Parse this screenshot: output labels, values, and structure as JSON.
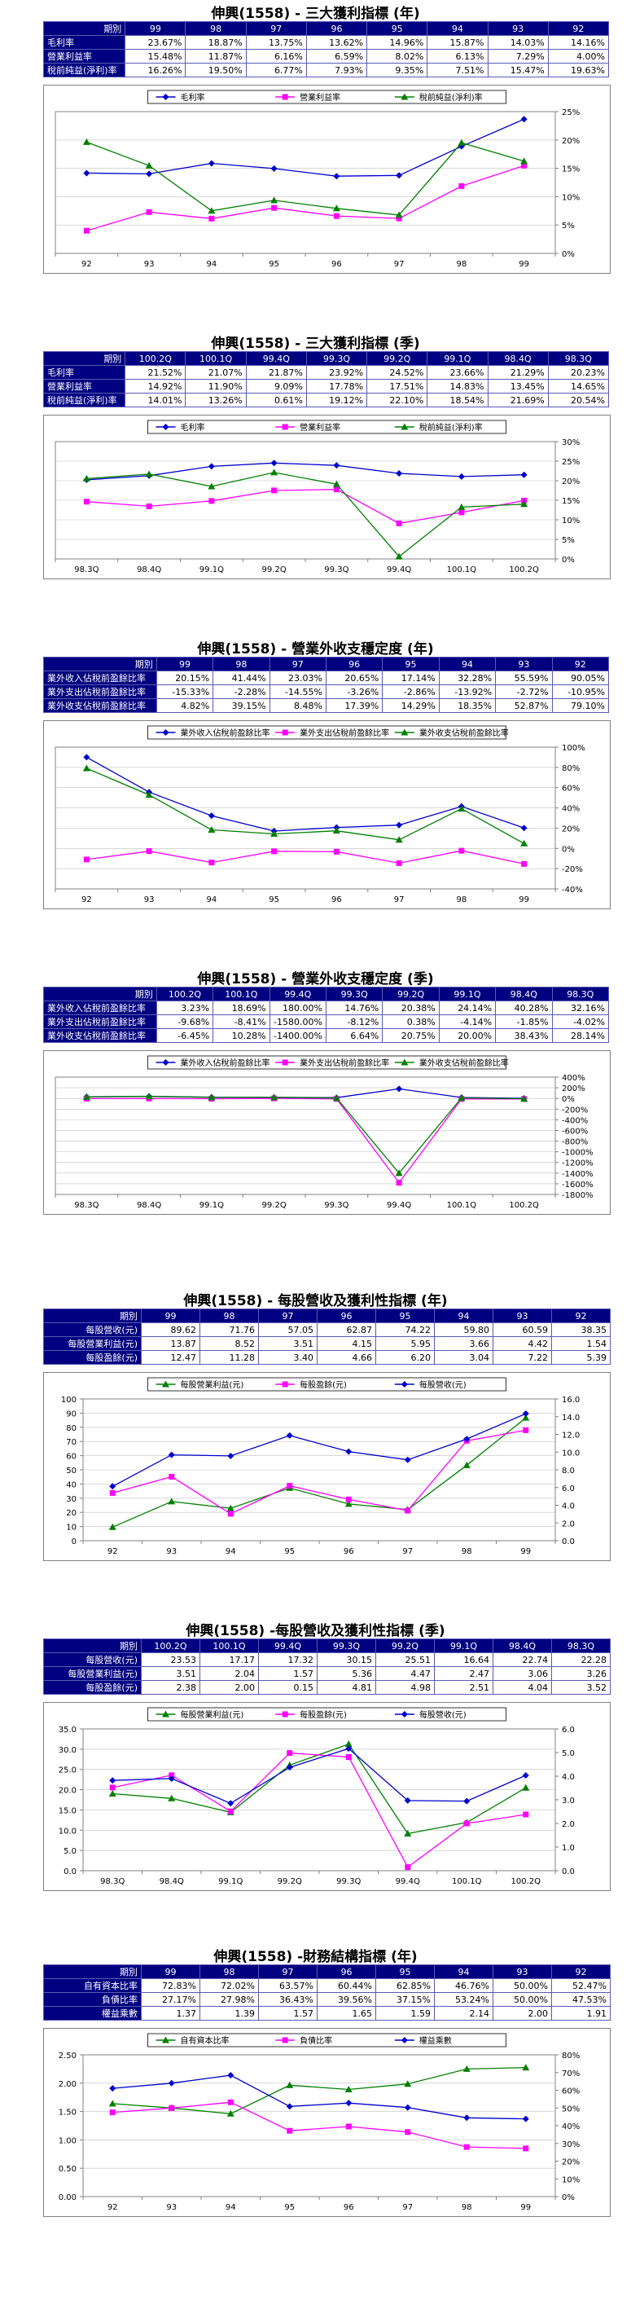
{
  "sections": [
    {
      "title": "伸興(1558) - 三大獲利指標 (年)",
      "label_align": "left",
      "columns": [
        "期別",
        "99",
        "98",
        "97",
        "96",
        "95",
        "94",
        "93",
        "92"
      ],
      "rows": [
        [
          "毛利率",
          "23.67%",
          "18.87%",
          "13.75%",
          "13.62%",
          "14.96%",
          "15.87%",
          "14.03%",
          "14.16%"
        ],
        [
          "營業利益率",
          "15.48%",
          "11.87%",
          "6.16%",
          "6.59%",
          "8.02%",
          "6.13%",
          "7.29%",
          "4.00%"
        ],
        [
          "稅前純益(淨利)率",
          "16.26%",
          "19.50%",
          "6.77%",
          "7.93%",
          "9.35%",
          "7.51%",
          "15.47%",
          "19.63%"
        ]
      ]
    },
    {
      "title": "伸興(1558) - 三大獲利指標 (季)",
      "label_align": "left",
      "columns": [
        "期別",
        "100.2Q",
        "100.1Q",
        "99.4Q",
        "99.3Q",
        "99.2Q",
        "99.1Q",
        "98.4Q",
        "98.3Q"
      ],
      "rows": [
        [
          "毛利率",
          "21.52%",
          "21.07%",
          "21.87%",
          "23.92%",
          "24.52%",
          "23.66%",
          "21.29%",
          "20.23%"
        ],
        [
          "營業利益率",
          "14.92%",
          "11.90%",
          "9.09%",
          "17.78%",
          "17.51%",
          "14.83%",
          "13.45%",
          "14.65%"
        ],
        [
          "稅前純益(淨利)率",
          "14.01%",
          "13.26%",
          "0.61%",
          "19.12%",
          "22.10%",
          "18.54%",
          "21.69%",
          "20.54%"
        ]
      ]
    },
    {
      "title": "伸興(1558) - 營業外收支穩定度 (年)",
      "label_align": "left",
      "columns": [
        "期別",
        "99",
        "98",
        "97",
        "96",
        "95",
        "94",
        "93",
        "92"
      ],
      "rows": [
        [
          "業外收入佔稅前盈餘比率",
          "20.15%",
          "41.44%",
          "23.03%",
          "20.65%",
          "17.14%",
          "32.28%",
          "55.59%",
          "90.05%"
        ],
        [
          "業外支出佔稅前盈餘比率",
          "-15.33%",
          "-2.28%",
          "-14.55%",
          "-3.26%",
          "-2.86%",
          "-13.92%",
          "-2.72%",
          "-10.95%"
        ],
        [
          "業外收支佔稅前盈餘比率",
          "4.82%",
          "39.15%",
          "8.48%",
          "17.39%",
          "14.29%",
          "18.35%",
          "52.87%",
          "79.10%"
        ]
      ]
    },
    {
      "title": "伸興(1558) - 營業外收支穩定度 (季)",
      "label_align": "left",
      "columns": [
        "期別",
        "100.2Q",
        "100.1Q",
        "99.4Q",
        "99.3Q",
        "99.2Q",
        "99.1Q",
        "98.4Q",
        "98.3Q"
      ],
      "rows": [
        [
          "業外收入佔稅前盈餘比率",
          "3.23%",
          "18.69%",
          "180.00%",
          "14.76%",
          "20.38%",
          "24.14%",
          "40.28%",
          "32.16%"
        ],
        [
          "業外支出佔稅前盈餘比率",
          "-9.68%",
          "-8.41%",
          "-1580.00%",
          "-8.12%",
          "0.38%",
          "-4.14%",
          "-1.85%",
          "-4.02%"
        ],
        [
          "業外收支佔稅前盈餘比率",
          "-6.45%",
          "10.28%",
          "-1400.00%",
          "6.64%",
          "20.75%",
          "20.00%",
          "38.43%",
          "28.14%"
        ]
      ]
    },
    {
      "title": "伸興(1558) - 每股營收及獲利性指標 (年)",
      "label_align": "right",
      "columns": [
        "期別",
        "99",
        "98",
        "97",
        "96",
        "95",
        "94",
        "93",
        "92"
      ],
      "rows": [
        [
          "每股營收(元)",
          "89.62",
          "71.76",
          "57.05",
          "62.87",
          "74.22",
          "59.80",
          "60.59",
          "38.35"
        ],
        [
          "每股營業利益(元)",
          "13.87",
          "8.52",
          "3.51",
          "4.15",
          "5.95",
          "3.66",
          "4.42",
          "1.54"
        ],
        [
          "每股盈餘(元)",
          "12.47",
          "11.28",
          "3.40",
          "4.66",
          "6.20",
          "3.04",
          "7.22",
          "5.39"
        ]
      ]
    },
    {
      "title": "伸興(1558) -每股營收及獲利性指標 (季)",
      "label_align": "right",
      "columns": [
        "期別",
        "100.2Q",
        "100.1Q",
        "99.4Q",
        "99.3Q",
        "99.2Q",
        "99.1Q",
        "98.4Q",
        "98.3Q"
      ],
      "rows": [
        [
          "每股營收(元)",
          "23.53",
          "17.17",
          "17.32",
          "30.15",
          "25.51",
          "16.64",
          "22.74",
          "22.28"
        ],
        [
          "每股營業利益(元)",
          "3.51",
          "2.04",
          "1.57",
          "5.36",
          "4.47",
          "2.47",
          "3.06",
          "3.26"
        ],
        [
          "每股盈餘(元)",
          "2.38",
          "2.00",
          "0.15",
          "4.81",
          "4.98",
          "2.51",
          "4.04",
          "3.52"
        ]
      ]
    },
    {
      "title": "伸興(1558) -財務結構指標 (年)",
      "label_align": "right",
      "columns": [
        "期別",
        "99",
        "98",
        "97",
        "96",
        "95",
        "94",
        "93",
        "92"
      ],
      "rows": [
        [
          "自有資本比率",
          "72.83%",
          "72.02%",
          "63.57%",
          "60.44%",
          "62.85%",
          "46.76%",
          "50.00%",
          "52.47%"
        ],
        [
          "負債比率",
          "27.17%",
          "27.98%",
          "36.43%",
          "39.56%",
          "37.15%",
          "53.24%",
          "50.00%",
          "47.53%"
        ],
        [
          "權益乘數",
          "1.37",
          "1.39",
          "1.57",
          "1.65",
          "1.59",
          "2.14",
          "2.00",
          "1.91"
        ]
      ]
    }
  ],
  "chart_data": [
    {
      "type": "line",
      "categories": [
        "92",
        "93",
        "94",
        "95",
        "96",
        "97",
        "98",
        "99"
      ],
      "right_axis": {
        "min": 0,
        "max": 25,
        "step": 5,
        "format": "pct0"
      },
      "legend": "top",
      "series": [
        {
          "name": "毛利率",
          "color": "#0000cc",
          "marker": "diamond",
          "axis": "right",
          "values": [
            14.16,
            14.03,
            15.87,
            14.96,
            13.62,
            13.75,
            18.87,
            23.67
          ]
        },
        {
          "name": "營業利益率",
          "color": "#ff00ff",
          "marker": "square",
          "axis": "right",
          "values": [
            4.0,
            7.29,
            6.13,
            8.02,
            6.59,
            6.16,
            11.87,
            15.48
          ]
        },
        {
          "name": "稅前純益(淨利)率",
          "color": "#008000",
          "marker": "triangle",
          "axis": "right",
          "values": [
            19.63,
            15.47,
            7.51,
            9.35,
            7.93,
            6.77,
            19.5,
            16.26
          ]
        }
      ]
    },
    {
      "type": "line",
      "categories": [
        "98.3Q",
        "98.4Q",
        "99.1Q",
        "99.2Q",
        "99.3Q",
        "99.4Q",
        "100.1Q",
        "100.2Q"
      ],
      "right_axis": {
        "min": 0,
        "max": 30,
        "step": 5,
        "format": "pct0"
      },
      "legend": "top",
      "series": [
        {
          "name": "毛利率",
          "color": "#0000cc",
          "marker": "diamond",
          "axis": "right",
          "values": [
            20.23,
            21.29,
            23.66,
            24.52,
            23.92,
            21.87,
            21.07,
            21.52
          ]
        },
        {
          "name": "營業利益率",
          "color": "#ff00ff",
          "marker": "square",
          "axis": "right",
          "values": [
            14.65,
            13.45,
            14.83,
            17.51,
            17.78,
            9.09,
            11.9,
            14.92
          ]
        },
        {
          "name": "稅前純益(淨利)率",
          "color": "#008000",
          "marker": "triangle",
          "axis": "right",
          "values": [
            20.54,
            21.69,
            18.54,
            22.1,
            19.12,
            0.61,
            13.26,
            14.01
          ]
        }
      ]
    },
    {
      "type": "line",
      "categories": [
        "92",
        "93",
        "94",
        "95",
        "96",
        "97",
        "98",
        "99"
      ],
      "right_axis": {
        "min": -40,
        "max": 100,
        "step": 20,
        "format": "pct0"
      },
      "legend": "top",
      "series": [
        {
          "name": "業外收入佔稅前盈餘比率",
          "color": "#0000cc",
          "marker": "diamond",
          "axis": "right",
          "values": [
            90.05,
            55.59,
            32.28,
            17.14,
            20.65,
            23.03,
            41.44,
            20.15
          ]
        },
        {
          "name": "業外支出佔稅前盈餘比率",
          "color": "#ff00ff",
          "marker": "square",
          "axis": "right",
          "values": [
            -10.95,
            -2.72,
            -13.92,
            -2.86,
            -3.26,
            -14.55,
            -2.28,
            -15.33
          ]
        },
        {
          "name": "業外收支佔稅前盈餘比率",
          "color": "#008000",
          "marker": "triangle",
          "axis": "right",
          "values": [
            79.1,
            52.87,
            18.35,
            14.29,
            17.39,
            8.48,
            39.15,
            4.82
          ]
        }
      ]
    },
    {
      "type": "line",
      "categories": [
        "98.3Q",
        "98.4Q",
        "99.1Q",
        "99.2Q",
        "99.3Q",
        "99.4Q",
        "100.1Q",
        "100.2Q"
      ],
      "right_axis": {
        "min": -1800,
        "max": 400,
        "step": 200,
        "format": "pct0"
      },
      "legend": "top",
      "series": [
        {
          "name": "業外收入佔稅前盈餘比率",
          "color": "#0000cc",
          "marker": "diamond",
          "axis": "right",
          "values": [
            32.16,
            40.28,
            24.14,
            20.38,
            14.76,
            180.0,
            18.69,
            3.23
          ]
        },
        {
          "name": "業外支出佔稅前盈餘比率",
          "color": "#ff00ff",
          "marker": "square",
          "axis": "right",
          "values": [
            -4.02,
            -1.85,
            -4.14,
            0.38,
            -8.12,
            -1580.0,
            -8.41,
            -9.68
          ]
        },
        {
          "name": "業外收支佔稅前盈餘比率",
          "color": "#008000",
          "marker": "triangle",
          "axis": "right",
          "values": [
            28.14,
            38.43,
            20.0,
            20.75,
            6.64,
            -1400.0,
            10.28,
            -6.45
          ]
        }
      ]
    },
    {
      "type": "line",
      "categories": [
        "92",
        "93",
        "94",
        "95",
        "96",
        "97",
        "98",
        "99"
      ],
      "left_axis": {
        "min": 0,
        "max": 100,
        "step": 10,
        "format": "int"
      },
      "right_axis": {
        "min": 0,
        "max": 16,
        "step": 2,
        "format": "d1"
      },
      "legend": "top",
      "series": [
        {
          "name": "每股營業利益(元)",
          "color": "#008000",
          "marker": "triangle",
          "axis": "right",
          "values": [
            1.54,
            4.42,
            3.66,
            5.95,
            4.15,
            3.51,
            8.52,
            13.87
          ]
        },
        {
          "name": "每股盈餘(元)",
          "color": "#ff00ff",
          "marker": "square",
          "axis": "right",
          "values": [
            5.39,
            7.22,
            3.04,
            6.2,
            4.66,
            3.4,
            11.28,
            12.47
          ]
        },
        {
          "name": "每股營收(元)",
          "color": "#0000cc",
          "marker": "diamond",
          "axis": "left",
          "values": [
            38.35,
            60.59,
            59.8,
            74.22,
            62.87,
            57.05,
            71.76,
            89.62
          ]
        }
      ]
    },
    {
      "type": "line",
      "categories": [
        "98.3Q",
        "98.4Q",
        "99.1Q",
        "99.2Q",
        "99.3Q",
        "99.4Q",
        "100.1Q",
        "100.2Q"
      ],
      "left_axis": {
        "min": 0,
        "max": 35,
        "step": 5,
        "format": "d1"
      },
      "right_axis": {
        "min": 0,
        "max": 6,
        "step": 1,
        "format": "d1"
      },
      "legend": "top",
      "series": [
        {
          "name": "每股營業利益(元)",
          "color": "#008000",
          "marker": "triangle",
          "axis": "right",
          "values": [
            3.26,
            3.06,
            2.47,
            4.47,
            5.36,
            1.57,
            2.04,
            3.51
          ]
        },
        {
          "name": "每股盈餘(元)",
          "color": "#ff00ff",
          "marker": "square",
          "axis": "right",
          "values": [
            3.52,
            4.04,
            2.51,
            4.98,
            4.81,
            0.15,
            2.0,
            2.38
          ]
        },
        {
          "name": "每股營收(元)",
          "color": "#0000cc",
          "marker": "diamond",
          "axis": "left",
          "values": [
            22.28,
            22.74,
            16.64,
            25.51,
            30.15,
            17.32,
            17.17,
            23.53
          ]
        }
      ]
    },
    {
      "type": "line",
      "categories": [
        "92",
        "93",
        "94",
        "95",
        "96",
        "97",
        "98",
        "99"
      ],
      "left_axis": {
        "min": 0,
        "max": 2.5,
        "step": 0.5,
        "format": "d2"
      },
      "right_axis": {
        "min": 0,
        "max": 80,
        "step": 10,
        "format": "pct0"
      },
      "legend": "top",
      "series": [
        {
          "name": "自有資本比率",
          "color": "#008000",
          "marker": "triangle",
          "axis": "right",
          "values": [
            52.47,
            50.0,
            46.76,
            62.85,
            60.44,
            63.57,
            72.02,
            72.83
          ]
        },
        {
          "name": "負債比率",
          "color": "#ff00ff",
          "marker": "square",
          "axis": "right",
          "values": [
            47.53,
            50.0,
            53.24,
            37.15,
            39.56,
            36.43,
            27.98,
            27.17
          ]
        },
        {
          "name": "權益乘數",
          "color": "#0000cc",
          "marker": "diamond",
          "axis": "left",
          "values": [
            1.91,
            2.0,
            2.14,
            1.59,
            1.65,
            1.57,
            1.39,
            1.37
          ]
        }
      ]
    }
  ]
}
